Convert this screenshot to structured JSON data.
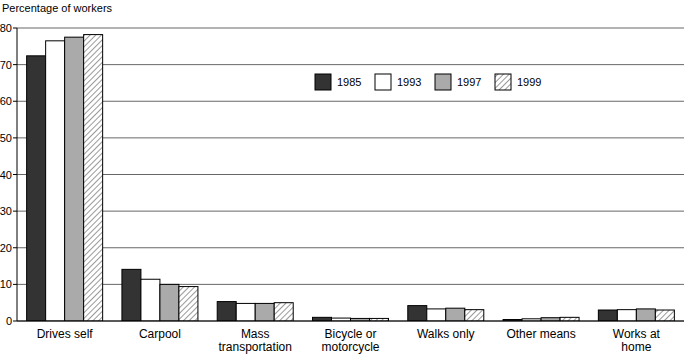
{
  "chart_data": {
    "type": "bar",
    "y_label": "Percentage of workers",
    "categories": [
      "Drives self",
      "Carpool",
      "Mass transportation",
      "Bicycle or motorcycle",
      "Walks only",
      "Other means",
      "Works at home"
    ],
    "series": [
      {
        "name": "1985",
        "color": "#333333",
        "values": [
          72.4,
          14.1,
          5.3,
          1.0,
          4.2,
          0.4,
          3.0
        ]
      },
      {
        "name": "1993",
        "color": "#ffffff",
        "values": [
          76.5,
          11.4,
          4.8,
          0.8,
          3.3,
          0.6,
          3.1
        ]
      },
      {
        "name": "1997",
        "color": "#aaaaaa",
        "values": [
          77.5,
          10.0,
          4.8,
          0.7,
          3.5,
          0.9,
          3.3
        ]
      },
      {
        "name": "1999",
        "color": "#555555",
        "line_style": "hatched",
        "values": [
          78.2,
          9.4,
          5.0,
          0.7,
          3.1,
          1.0,
          3.0
        ]
      }
    ],
    "ylim": [
      0,
      80
    ],
    "yticks": [
      0,
      10,
      20,
      30,
      40,
      50,
      60,
      70,
      80
    ],
    "grid": true,
    "legend": "top"
  }
}
